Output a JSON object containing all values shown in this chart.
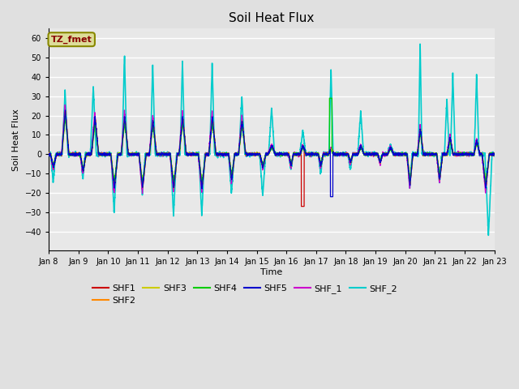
{
  "title": "Soil Heat Flux",
  "xlabel": "Time",
  "ylabel": "Soil Heat Flux",
  "ylim": [
    -50,
    65
  ],
  "yticks": [
    -40,
    -30,
    -20,
    -10,
    0,
    10,
    20,
    30,
    40,
    50,
    60
  ],
  "xtick_labels": [
    "Jan 8",
    "Jan 9",
    "Jan 10",
    "Jan 11",
    "Jan 12",
    "Jan 13",
    "Jan 14",
    "Jan 15",
    "Jan 16",
    "Jan 17",
    "Jan 18",
    "Jan 19",
    "Jan 20",
    "Jan 21",
    "Jan 22",
    "Jan 23"
  ],
  "background_color": "#e0e0e0",
  "plot_bg_color": "#e8e8e8",
  "grid_color": "#ffffff",
  "series_colors": {
    "SHF1": "#cc0000",
    "SHF2": "#ff8800",
    "SHF3": "#cccc00",
    "SHF4": "#00cc00",
    "SHF5": "#0000cc",
    "SHF_1": "#cc00cc",
    "SHF_2": "#00cccc"
  },
  "n_days": 15,
  "ppd": 288
}
